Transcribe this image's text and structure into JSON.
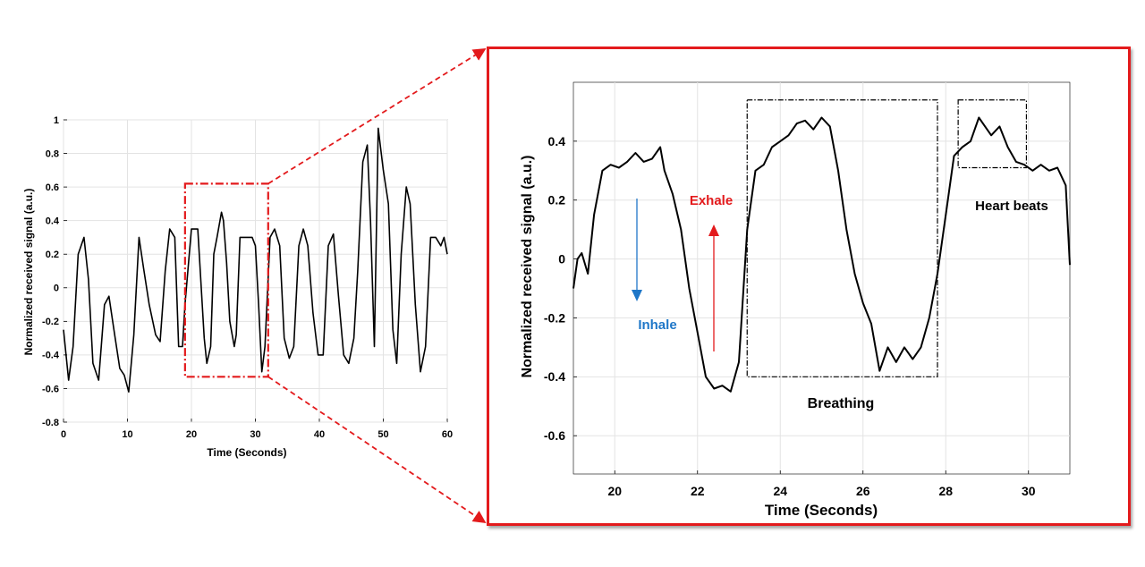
{
  "colors": {
    "signal": "#000000",
    "zoom_box": "#e31a1c",
    "grid": "#e3e3e3",
    "inhale": "#1f77c8",
    "exhale": "#e31a1c"
  },
  "chart_data": [
    {
      "type": "line",
      "xlabel": "Time (Seconds)",
      "ylabel": "Normalized received signal (a.u.)",
      "xlim": [
        0,
        60
      ],
      "ylim": [
        -0.8,
        1
      ],
      "xticks": [
        "0",
        "10",
        "20",
        "30",
        "40",
        "50",
        "60"
      ],
      "yticks": [
        "-0.8",
        "-0.6",
        "-0.4",
        "-0.2",
        "0",
        "0.2",
        "0.4",
        "0.6",
        "0.8",
        "1"
      ],
      "grid": true,
      "series": [
        {
          "x": [
            0,
            0.8,
            1.5,
            2.3,
            3.2,
            3.9,
            4.6,
            5.5,
            6.4,
            7.1,
            8.0,
            8.8,
            9.5,
            10.2,
            11.0,
            11.8,
            12.5,
            13.4,
            14.4,
            15.1,
            15.9,
            16.6,
            17.4,
            18.0,
            18.6,
            19.0,
            20.0,
            21.0,
            22.0,
            22.4,
            23.0,
            23.5,
            24.0,
            24.7,
            25.0,
            25.5,
            26.0,
            26.7,
            27.0,
            27.6,
            28.4,
            28.8,
            29.5,
            30.0,
            30.5,
            31.0,
            31.5,
            32.3,
            33.0,
            33.8,
            34.5,
            35.3,
            36.0,
            36.8,
            37.5,
            38.2,
            39.0,
            39.8,
            40.6,
            41.4,
            42.2,
            43.0,
            43.8,
            44.6,
            45.4,
            46.0,
            46.8,
            47.5,
            48.0,
            48.6,
            49.2,
            50.0,
            50.8,
            51.5,
            52.1,
            52.8,
            53.6,
            54.2,
            55.0,
            55.8,
            56.6,
            57.4,
            58.2,
            59.0,
            59.5,
            60.0
          ],
          "values": [
            -0.25,
            -0.55,
            -0.35,
            0.2,
            0.3,
            0.05,
            -0.45,
            -0.55,
            -0.1,
            -0.05,
            -0.28,
            -0.48,
            -0.52,
            -0.62,
            -0.28,
            0.3,
            0.12,
            -0.1,
            -0.28,
            -0.32,
            0.1,
            0.35,
            0.3,
            -0.35,
            -0.35,
            -0.1,
            0.35,
            0.35,
            -0.3,
            -0.45,
            -0.35,
            0.2,
            0.3,
            0.45,
            0.4,
            0.15,
            -0.2,
            -0.35,
            -0.28,
            0.3,
            0.3,
            0.3,
            0.3,
            0.25,
            -0.1,
            -0.5,
            -0.35,
            0.3,
            0.35,
            0.25,
            -0.3,
            -0.42,
            -0.35,
            0.25,
            0.35,
            0.25,
            -0.15,
            -0.4,
            -0.4,
            0.25,
            0.32,
            -0.05,
            -0.4,
            -0.45,
            -0.3,
            0.1,
            0.75,
            0.85,
            0.4,
            -0.35,
            0.95,
            0.7,
            0.5,
            -0.25,
            -0.45,
            0.2,
            0.6,
            0.5,
            -0.1,
            -0.5,
            -0.35,
            0.3,
            0.3,
            0.25,
            0.3,
            0.2
          ]
        }
      ]
    },
    {
      "type": "line",
      "xlabel": "Time (Seconds)",
      "ylabel": "Normalized received signal (a.u.)",
      "xlim": [
        19,
        31
      ],
      "ylim": [
        -0.73,
        0.6
      ],
      "xticks": [
        "20",
        "22",
        "24",
        "26",
        "28",
        "30"
      ],
      "yticks": [
        "-0.6",
        "-0.4",
        "-0.2",
        "0",
        "0.2",
        "0.4"
      ],
      "grid": true,
      "series": [
        {
          "x": [
            19.0,
            19.1,
            19.2,
            19.35,
            19.5,
            19.7,
            19.9,
            20.1,
            20.3,
            20.5,
            20.7,
            20.9,
            21.1,
            21.2,
            21.4,
            21.6,
            21.8,
            22.0,
            22.2,
            22.4,
            22.6,
            22.8,
            23.0,
            23.2,
            23.4,
            23.6,
            23.8,
            24.0,
            24.2,
            24.4,
            24.6,
            24.8,
            25.0,
            25.2,
            25.4,
            25.6,
            25.8,
            26.0,
            26.2,
            26.4,
            26.6,
            26.8,
            27.0,
            27.2,
            27.4,
            27.6,
            27.8,
            28.0,
            28.2,
            28.4,
            28.6,
            28.8,
            28.95,
            29.1,
            29.3,
            29.5,
            29.7,
            29.9,
            30.1,
            30.3,
            30.5,
            30.7,
            30.9,
            31.0
          ],
          "values": [
            -0.1,
            0.0,
            0.02,
            -0.05,
            0.15,
            0.3,
            0.32,
            0.31,
            0.33,
            0.36,
            0.33,
            0.34,
            0.38,
            0.3,
            0.22,
            0.1,
            -0.1,
            -0.25,
            -0.4,
            -0.44,
            -0.43,
            -0.45,
            -0.35,
            0.1,
            0.3,
            0.32,
            0.38,
            0.4,
            0.42,
            0.46,
            0.47,
            0.44,
            0.48,
            0.45,
            0.3,
            0.1,
            -0.05,
            -0.15,
            -0.22,
            -0.38,
            -0.3,
            -0.35,
            -0.3,
            -0.34,
            -0.3,
            -0.2,
            -0.05,
            0.15,
            0.35,
            0.38,
            0.4,
            0.48,
            0.45,
            0.42,
            0.45,
            0.38,
            0.33,
            0.32,
            0.3,
            0.32,
            0.3,
            0.31,
            0.25,
            -0.02
          ]
        }
      ],
      "annotations": {
        "inhale": "Inhale",
        "exhale": "Exhale",
        "breathing": "Breathing",
        "heart_beats": "Heart beats"
      },
      "highlight_boxes": [
        {
          "name": "breathing",
          "x": [
            23.2,
            27.8
          ],
          "y": [
            -0.4,
            0.54
          ]
        },
        {
          "name": "heart_beats",
          "x": [
            28.3,
            29.95
          ],
          "y": [
            0.31,
            0.54
          ]
        }
      ]
    }
  ],
  "zoom_region": {
    "x": [
      19,
      32
    ],
    "y": [
      -0.53,
      0.62
    ]
  }
}
